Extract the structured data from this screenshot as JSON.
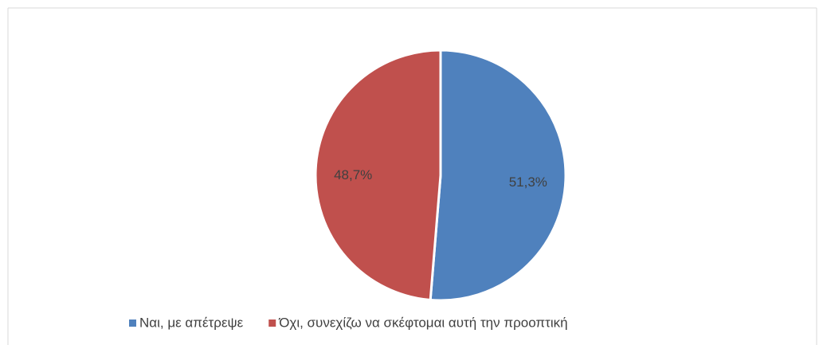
{
  "chart_data": {
    "type": "pie",
    "categories": [
      "Ναι, με απέτρεψε",
      "Όχι, συνεχίζω να σκέφτομαι αυτή την προοπτική"
    ],
    "values": [
      51.3,
      48.7
    ],
    "value_labels": [
      "51,3%",
      "48,7%"
    ],
    "colors": [
      "#4f81bd",
      "#c0504d"
    ],
    "legend": "bottom"
  }
}
